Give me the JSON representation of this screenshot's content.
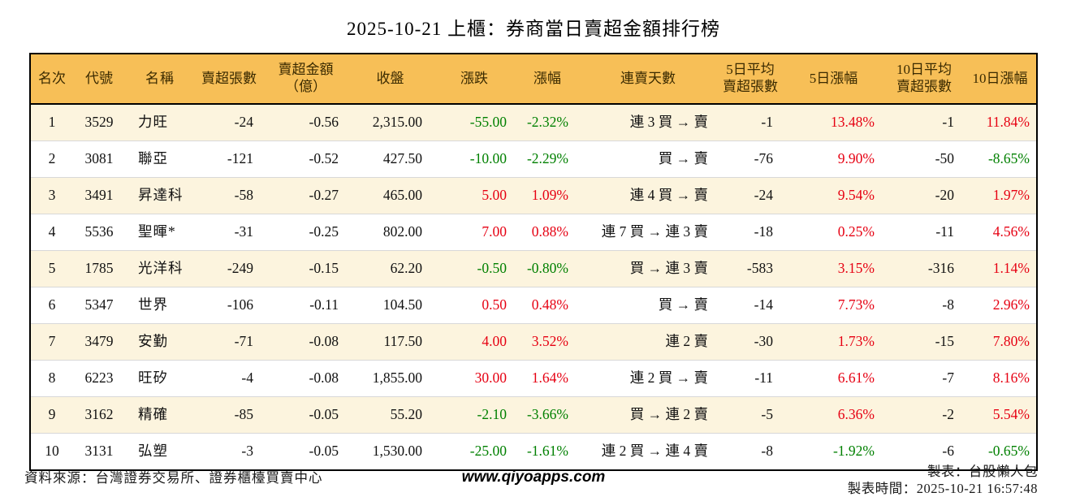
{
  "title": "2025-10-21 上櫃：券商當日賣超金額排行榜",
  "colors": {
    "up_red": "#e60012",
    "down_green": "#008000",
    "header_bg": "#f7bf57",
    "header_text": "#3a2a00",
    "row_alt_bg": "#fcf4de",
    "row_divider": "#d8d8d8",
    "border": "#000000"
  },
  "table": {
    "columns": [
      {
        "key": "rank",
        "label": "名次",
        "align": "center"
      },
      {
        "key": "code",
        "label": "代號",
        "align": "center"
      },
      {
        "key": "name",
        "label": "名稱",
        "align": "left"
      },
      {
        "key": "net-sell-volume",
        "label": "賣超張數",
        "align": "right"
      },
      {
        "key": "net-sell-amount-100m",
        "label": "賣超金額\n（億）",
        "align": "right"
      },
      {
        "key": "close",
        "label": "收盤",
        "align": "right"
      },
      {
        "key": "change",
        "label": "漲跌",
        "align": "right",
        "signed": true
      },
      {
        "key": "change-pct",
        "label": "漲幅",
        "align": "right",
        "signed": true
      },
      {
        "key": "consecutive-sell-days",
        "label": "連賣天數",
        "align": "right"
      },
      {
        "key": "avg5-net-sell-volume",
        "label": "5日平均\n賣超張數",
        "align": "right"
      },
      {
        "key": "chg5-pct",
        "label": "5日漲幅",
        "align": "right",
        "signed": true
      },
      {
        "key": "avg10-net-sell-volume",
        "label": "10日平均\n賣超張數",
        "align": "right"
      },
      {
        "key": "chg10-pct",
        "label": "10日漲幅",
        "align": "right",
        "signed": true
      }
    ]
  },
  "chart_data": {
    "type": "table",
    "title": "2025-10-21 上櫃：券商當日賣超金額排行榜",
    "columns": [
      "名次",
      "代號",
      "名稱",
      "賣超張數",
      "賣超金額（億）",
      "收盤",
      "漲跌",
      "漲幅",
      "連賣天數",
      "5日平均賣超張數",
      "5日漲幅",
      "10日平均賣超張數",
      "10日漲幅"
    ],
    "rows": [
      [
        "1",
        "3529",
        "力旺",
        "-24",
        "-0.56",
        "2,315.00",
        "-55.00",
        "-2.32%",
        "連 3 買 → 賣",
        "-1",
        "13.48%",
        "-1",
        "11.84%"
      ],
      [
        "2",
        "3081",
        "聯亞",
        "-121",
        "-0.52",
        "427.50",
        "-10.00",
        "-2.29%",
        "買 → 賣",
        "-76",
        "9.90%",
        "-50",
        "-8.65%"
      ],
      [
        "3",
        "3491",
        "昇達科",
        "-58",
        "-0.27",
        "465.00",
        "5.00",
        "1.09%",
        "連 4 買 → 賣",
        "-24",
        "9.54%",
        "-20",
        "1.97%"
      ],
      [
        "4",
        "5536",
        "聖暉*",
        "-31",
        "-0.25",
        "802.00",
        "7.00",
        "0.88%",
        "連 7 買 → 連 3 賣",
        "-18",
        "0.25%",
        "-11",
        "4.56%"
      ],
      [
        "5",
        "1785",
        "光洋科",
        "-249",
        "-0.15",
        "62.20",
        "-0.50",
        "-0.80%",
        "買 → 連 3 賣",
        "-583",
        "3.15%",
        "-316",
        "1.14%"
      ],
      [
        "6",
        "5347",
        "世界",
        "-106",
        "-0.11",
        "104.50",
        "0.50",
        "0.48%",
        "買 → 賣",
        "-14",
        "7.73%",
        "-8",
        "2.96%"
      ],
      [
        "7",
        "3479",
        "安勤",
        "-71",
        "-0.08",
        "117.50",
        "4.00",
        "3.52%",
        "連 2 賣",
        "-30",
        "1.73%",
        "-15",
        "7.80%"
      ],
      [
        "8",
        "6223",
        "旺矽",
        "-4",
        "-0.08",
        "1,855.00",
        "30.00",
        "1.64%",
        "連 2 買 → 賣",
        "-11",
        "6.61%",
        "-7",
        "8.16%"
      ],
      [
        "9",
        "3162",
        "精確",
        "-85",
        "-0.05",
        "55.20",
        "-2.10",
        "-3.66%",
        "買 → 連 2 賣",
        "-5",
        "6.36%",
        "-2",
        "5.54%"
      ],
      [
        "10",
        "3131",
        "弘塑",
        "-3",
        "-0.05",
        "1,530.00",
        "-25.00",
        "-1.61%",
        "連 2 買 → 連 4 賣",
        "-8",
        "-1.92%",
        "-6",
        "-0.65%"
      ]
    ]
  },
  "footer": {
    "source": "資料來源：台灣證券交易所、證券櫃檯買賣中心",
    "website": "www.qiyoapps.com",
    "maker": "製表：台股懶人包",
    "made_at": "製表時間：2025-10-21 16:57:48"
  }
}
